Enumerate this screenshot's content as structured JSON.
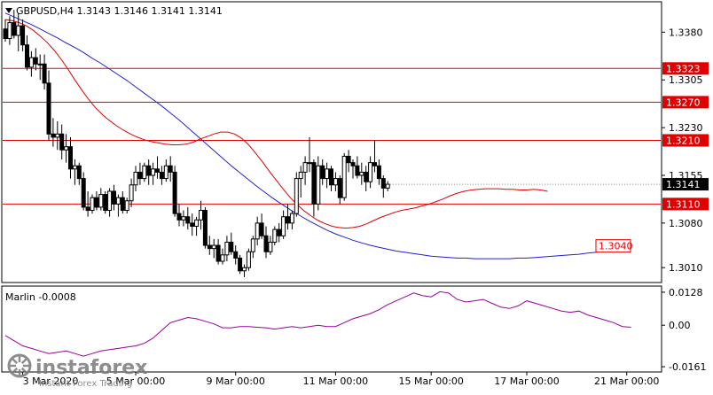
{
  "symbol_header": "GBPUSD,H4  1.3143 1.3146 1.3141 1.3141",
  "indicator_header": "Marlin -0.0008",
  "watermark": {
    "brand": "instaforex",
    "tagline": "Instant Forex Trading",
    "logo_icon": "instaforex-logo-icon"
  },
  "colors": {
    "background": "#ffffff",
    "frame": "#000000",
    "candle_bull": "#ffffff",
    "candle_bear": "#000000",
    "level_line": "#e00000",
    "ma_fast": "#e00000",
    "ma_slow": "#2020d0",
    "oscillator": "#9b009b",
    "current_price_tag": "#000000",
    "level_tag": "#e00000"
  },
  "price_axis": {
    "ticks": [
      {
        "value": 1.338,
        "label": "1.3380"
      },
      {
        "value": 1.3305,
        "label": "1.3305"
      },
      {
        "value": 1.323,
        "label": "1.3230"
      },
      {
        "value": 1.3155,
        "label": "1.3155"
      },
      {
        "value": 1.308,
        "label": "1.3080"
      },
      {
        "value": 1.301,
        "label": "1.3010"
      }
    ],
    "range": [
      1.2988,
      1.3425
    ]
  },
  "horizontal_levels": [
    {
      "value": 1.3323,
      "label": "1.3323"
    },
    {
      "value": 1.327,
      "label": "1.3270"
    },
    {
      "value": 1.321,
      "label": "1.3210"
    },
    {
      "value": 1.311,
      "label": "1.3110"
    }
  ],
  "current_price": {
    "value": 1.3141,
    "label": "1.3141"
  },
  "projection_target": {
    "value": 1.304,
    "label": "1.3040"
  },
  "indicator_axis": {
    "ticks": [
      {
        "value": 0.0128,
        "label": "0.0128"
      },
      {
        "value": 0.0,
        "label": "0.00"
      },
      {
        "value": -0.0161,
        "label": "-0.0161"
      }
    ],
    "range": [
      -0.0178,
      0.0145
    ]
  },
  "time_axis": {
    "labels": [
      {
        "label": "3 Mar 2020",
        "index": 4
      },
      {
        "label": "5 Mar 00:00",
        "index": 30
      },
      {
        "label": "9 Mar 00:00",
        "index": 53
      },
      {
        "label": "11 Mar 00:00",
        "index": 76
      },
      {
        "label": "15 Mar 00:00",
        "index": 98
      },
      {
        "label": "17 Mar 00:00",
        "index": 120
      },
      {
        "label": "21 Mar 00:00",
        "index": 143
      }
    ]
  },
  "chart_data": {
    "type": "candlestick",
    "ohlc": [
      [
        1.3385,
        1.34,
        1.3365,
        1.337
      ],
      [
        1.337,
        1.3405,
        1.336,
        1.3395
      ],
      [
        1.3395,
        1.3415,
        1.337,
        1.3375
      ],
      [
        1.3375,
        1.341,
        1.335,
        1.339
      ],
      [
        1.339,
        1.34,
        1.335,
        1.336
      ],
      [
        1.336,
        1.3375,
        1.332,
        1.3325
      ],
      [
        1.3325,
        1.335,
        1.331,
        1.334
      ],
      [
        1.334,
        1.3355,
        1.332,
        1.333
      ],
      [
        1.333,
        1.3345,
        1.3305,
        1.333
      ],
      [
        1.333,
        1.3345,
        1.329,
        1.33
      ],
      [
        1.33,
        1.332,
        1.321,
        1.322
      ],
      [
        1.322,
        1.3245,
        1.32,
        1.3215
      ],
      [
        1.3215,
        1.324,
        1.3195,
        1.322
      ],
      [
        1.322,
        1.3235,
        1.318,
        1.3195
      ],
      [
        1.3195,
        1.322,
        1.3175,
        1.32
      ],
      [
        1.32,
        1.3215,
        1.315,
        1.3165
      ],
      [
        1.3165,
        1.318,
        1.314,
        1.317
      ],
      [
        1.317,
        1.3175,
        1.314,
        1.315
      ],
      [
        1.315,
        1.316,
        1.31,
        1.3105
      ],
      [
        1.3105,
        1.313,
        1.309,
        1.31
      ],
      [
        1.31,
        1.3125,
        1.3095,
        1.312
      ],
      [
        1.312,
        1.313,
        1.31,
        1.3105
      ],
      [
        1.3105,
        1.3135,
        1.31,
        1.3125
      ],
      [
        1.3125,
        1.313,
        1.3095,
        1.31
      ],
      [
        1.31,
        1.3135,
        1.309,
        1.313
      ],
      [
        1.313,
        1.314,
        1.31,
        1.311
      ],
      [
        1.311,
        1.3125,
        1.309,
        1.312
      ],
      [
        1.312,
        1.313,
        1.3095,
        1.31
      ],
      [
        1.31,
        1.312,
        1.3095,
        1.3115
      ],
      [
        1.3115,
        1.315,
        1.3105,
        1.314
      ],
      [
        1.314,
        1.317,
        1.313,
        1.316
      ],
      [
        1.316,
        1.3175,
        1.314,
        1.315
      ],
      [
        1.315,
        1.3175,
        1.3145,
        1.317
      ],
      [
        1.317,
        1.318,
        1.314,
        1.3155
      ],
      [
        1.3155,
        1.3175,
        1.314,
        1.3165
      ],
      [
        1.3165,
        1.3185,
        1.315,
        1.316
      ],
      [
        1.316,
        1.317,
        1.314,
        1.315
      ],
      [
        1.315,
        1.318,
        1.3145,
        1.317
      ],
      [
        1.317,
        1.3185,
        1.3145,
        1.316
      ],
      [
        1.316,
        1.317,
        1.309,
        1.3095
      ],
      [
        1.3095,
        1.311,
        1.3075,
        1.3085
      ],
      [
        1.3085,
        1.31,
        1.3075,
        1.309
      ],
      [
        1.309,
        1.3105,
        1.307,
        1.308
      ],
      [
        1.308,
        1.3095,
        1.306,
        1.3075
      ],
      [
        1.3075,
        1.309,
        1.306,
        1.3085
      ],
      [
        1.3085,
        1.3115,
        1.307,
        1.31
      ],
      [
        1.31,
        1.3105,
        1.304,
        1.3045
      ],
      [
        1.3045,
        1.306,
        1.303,
        1.304
      ],
      [
        1.304,
        1.3055,
        1.3025,
        1.3045
      ],
      [
        1.3045,
        1.3055,
        1.3015,
        1.302
      ],
      [
        1.302,
        1.304,
        1.3015,
        1.303
      ],
      [
        1.303,
        1.306,
        1.302,
        1.305
      ],
      [
        1.305,
        1.3065,
        1.303,
        1.3035
      ],
      [
        1.3035,
        1.3045,
        1.3015,
        1.3025
      ],
      [
        1.3025,
        1.303,
        1.3,
        1.3005
      ],
      [
        1.3005,
        1.3015,
        1.2995,
        1.301
      ],
      [
        1.301,
        1.304,
        1.3005,
        1.3035
      ],
      [
        1.3035,
        1.306,
        1.3025,
        1.3055
      ],
      [
        1.3055,
        1.309,
        1.3045,
        1.308
      ],
      [
        1.308,
        1.3095,
        1.3055,
        1.306
      ],
      [
        1.306,
        1.3075,
        1.3025,
        1.3035
      ],
      [
        1.3035,
        1.306,
        1.303,
        1.305
      ],
      [
        1.305,
        1.3075,
        1.3045,
        1.307
      ],
      [
        1.307,
        1.308,
        1.305,
        1.306
      ],
      [
        1.306,
        1.31,
        1.3055,
        1.309
      ],
      [
        1.309,
        1.311,
        1.307,
        1.308
      ],
      [
        1.308,
        1.31,
        1.307,
        1.3095
      ],
      [
        1.3095,
        1.316,
        1.309,
        1.315
      ],
      [
        1.315,
        1.317,
        1.312,
        1.316
      ],
      [
        1.316,
        1.3185,
        1.314,
        1.3175
      ],
      [
        1.3175,
        1.3215,
        1.316,
        1.3175
      ],
      [
        1.3175,
        1.318,
        1.309,
        1.311
      ],
      [
        1.311,
        1.3185,
        1.31,
        1.317
      ],
      [
        1.317,
        1.318,
        1.314,
        1.315
      ],
      [
        1.315,
        1.3175,
        1.3135,
        1.3165
      ],
      [
        1.3165,
        1.317,
        1.313,
        1.314
      ],
      [
        1.314,
        1.316,
        1.313,
        1.315
      ],
      [
        1.315,
        1.3155,
        1.311,
        1.312
      ],
      [
        1.312,
        1.319,
        1.3115,
        1.3185
      ],
      [
        1.3185,
        1.3195,
        1.316,
        1.3175
      ],
      [
        1.3175,
        1.318,
        1.315,
        1.317
      ],
      [
        1.317,
        1.3185,
        1.315,
        1.3155
      ],
      [
        1.3155,
        1.3175,
        1.314,
        1.316
      ],
      [
        1.316,
        1.317,
        1.313,
        1.3145
      ],
      [
        1.3145,
        1.3185,
        1.3135,
        1.3175
      ],
      [
        1.3175,
        1.321,
        1.316,
        1.317
      ],
      [
        1.317,
        1.318,
        1.314,
        1.315
      ],
      [
        1.315,
        1.3155,
        1.312,
        1.3135
      ],
      [
        1.3135,
        1.3146,
        1.313,
        1.3141
      ]
    ],
    "ma_fast": [
      1.34,
      1.3398,
      1.3395,
      1.339,
      1.3383,
      1.3374,
      1.3364,
      1.3352,
      1.3338,
      1.3322,
      1.3305,
      1.3289,
      1.3274,
      1.3261,
      1.325,
      1.3241,
      1.3233,
      1.3226,
      1.322,
      1.3215,
      1.3211,
      1.3208,
      1.3206,
      1.3204,
      1.3203,
      1.3203,
      1.3204,
      1.3207,
      1.3212,
      1.3216,
      1.322,
      1.3223,
      1.3223,
      1.322,
      1.3213,
      1.3203,
      1.319,
      1.3176,
      1.3161,
      1.3147,
      1.3133,
      1.312,
      1.3109,
      1.3099,
      1.3091,
      1.3084,
      1.3079,
      1.3075,
      1.3073,
      1.3072,
      1.3073,
      1.3075,
      1.3079,
      1.3084,
      1.3089,
      1.3093,
      1.3097,
      1.31,
      1.3102,
      1.3104,
      1.3107,
      1.311,
      1.3114,
      1.3118,
      1.3123,
      1.3127,
      1.313,
      1.3132,
      1.3133,
      1.3134,
      1.3134,
      1.3134,
      1.3133,
      1.3133,
      1.3132,
      1.3132,
      1.3133,
      1.3132,
      1.313
    ],
    "ma_slow": [
      1.341,
      1.3404,
      1.3398,
      1.3392,
      1.3385,
      1.3378,
      1.3371,
      1.3363,
      1.3356,
      1.3348,
      1.3339,
      1.3331,
      1.3322,
      1.3313,
      1.3304,
      1.3294,
      1.3284,
      1.3274,
      1.3264,
      1.3253,
      1.3242,
      1.323,
      1.3218,
      1.3206,
      1.3194,
      1.3182,
      1.317,
      1.3159,
      1.3148,
      1.3137,
      1.3127,
      1.3117,
      1.3108,
      1.3099,
      1.3091,
      1.3083,
      1.3076,
      1.3069,
      1.3063,
      1.3058,
      1.3053,
      1.3049,
      1.3045,
      1.3042,
      1.3039,
      1.3036,
      1.3034,
      1.3032,
      1.303,
      1.3028,
      1.3027,
      1.3026,
      1.3025,
      1.3025,
      1.3024,
      1.3024,
      1.3024,
      1.3024,
      1.3024,
      1.3025,
      1.3025,
      1.3026,
      1.3027,
      1.3028,
      1.3029,
      1.303,
      1.3031,
      1.3033,
      1.3034,
      1.3036,
      1.3037,
      1.3038,
      1.304
    ],
    "marlin": [
      -0.004,
      -0.006,
      -0.008,
      -0.009,
      -0.01,
      -0.011,
      -0.0105,
      -0.01,
      -0.011,
      -0.012,
      -0.011,
      -0.01,
      -0.0095,
      -0.009,
      -0.0085,
      -0.008,
      -0.007,
      -0.005,
      -0.002,
      0.001,
      0.002,
      0.003,
      0.0025,
      0.0015,
      0.0005,
      -0.001,
      -0.001,
      -0.0005,
      -0.0005,
      -0.0008,
      -0.001,
      -0.0015,
      -0.001,
      -0.0005,
      -0.001,
      -0.0005,
      0.0,
      -0.0005,
      -0.0005,
      0.001,
      0.0025,
      0.0035,
      0.0045,
      0.006,
      0.008,
      0.0095,
      0.011,
      0.0125,
      0.0115,
      0.011,
      0.013,
      0.0125,
      0.01,
      0.009,
      0.0095,
      0.01,
      0.0085,
      0.007,
      0.0065,
      0.0075,
      0.0095,
      0.0085,
      0.0075,
      0.0065,
      0.0055,
      0.005,
      0.0055,
      0.004,
      0.003,
      0.002,
      0.001,
      -0.0005,
      -0.0008
    ]
  }
}
